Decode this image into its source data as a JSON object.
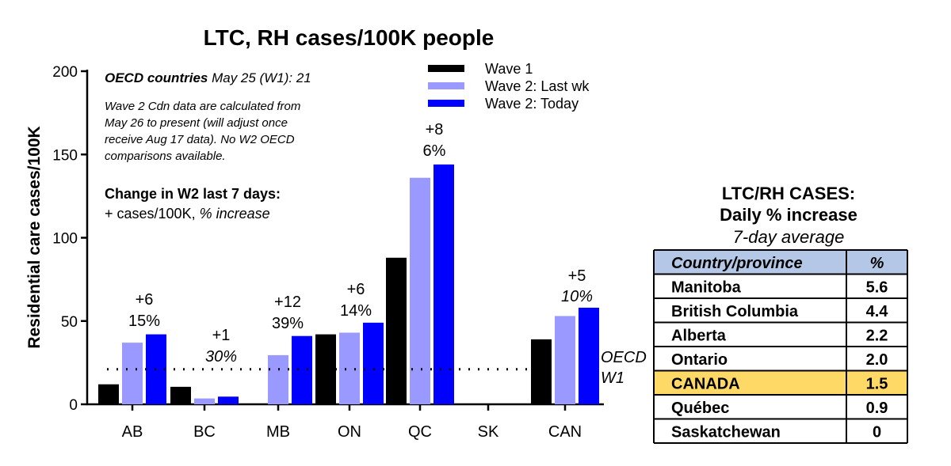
{
  "chart_data": {
    "type": "bar",
    "title": "LTC, RH cases/100K people",
    "ylabel": "Residential care cases/100K",
    "ylim": [
      0,
      200
    ],
    "yticks": [
      0,
      50,
      100,
      150,
      200
    ],
    "categories": [
      "AB",
      "BC",
      "MB",
      "ON",
      "QC",
      "SK",
      "CAN"
    ],
    "series": [
      {
        "name": "Wave 1",
        "color": "#000000",
        "values": [
          12,
          10.5,
          0,
          42,
          88,
          0,
          39
        ]
      },
      {
        "name": "Wave 2: Last wk",
        "color": "#9999ff",
        "values": [
          37,
          3.5,
          29.5,
          43,
          136,
          0,
          53
        ]
      },
      {
        "name": "Wave 2: Today",
        "color": "#0000ff",
        "values": [
          42,
          4.6,
          41,
          49,
          144,
          0,
          58
        ]
      }
    ],
    "bar_annotations": [
      {
        "category": "AB",
        "top": "+6",
        "bottom": "15%",
        "bottom_italic": false
      },
      {
        "category": "BC",
        "top": "+1",
        "bottom": "30%",
        "bottom_italic": true
      },
      {
        "category": "MB",
        "top": "+12",
        "bottom": "39%",
        "bottom_italic": false
      },
      {
        "category": "ON",
        "top": "+6",
        "bottom": "14%",
        "bottom_italic": false
      },
      {
        "category": "QC",
        "top": "+8",
        "bottom": "6%",
        "bottom_italic": false
      },
      {
        "category": "CAN",
        "top": "+5",
        "bottom": "10%",
        "bottom_italic": true
      }
    ],
    "reference_line": {
      "value": 21,
      "label_line1": "OECD",
      "label_line2": "W1",
      "style": "dotted"
    },
    "legend_placement": "top-center"
  },
  "annotations": {
    "oecd_bold": "OECD countries",
    "oecd_rest": " May 25 (W1): 21",
    "note_lines": [
      "Wave 2 Cdn data are calculated from",
      "May 26 to present (will adjust once",
      "receive Aug 17 data). No W2 OECD",
      "comparisons available."
    ],
    "change_heading": "Change in W2 last 7 days:",
    "change_sub_plain": "+ cases/100K, ",
    "change_sub_italic": "% increase"
  },
  "table": {
    "title_line1": "LTC/RH CASES:",
    "title_line2": "Daily % increase",
    "subtitle": "7-day average",
    "header": [
      "Country/province",
      "%"
    ],
    "header_color": "#b4c7e7",
    "highlight_color": "#ffd966",
    "rows": [
      {
        "name": "Manitoba",
        "value": "5.6",
        "highlight": false
      },
      {
        "name": "British Columbia",
        "value": "4.4",
        "highlight": false
      },
      {
        "name": "Alberta",
        "value": "2.2",
        "highlight": false
      },
      {
        "name": "Ontario",
        "value": "2.0",
        "highlight": false
      },
      {
        "name": "CANADA",
        "value": "1.5",
        "highlight": true
      },
      {
        "name": "Québec",
        "value": "0.9",
        "highlight": false
      },
      {
        "name": "Saskatchewan",
        "value": "0",
        "highlight": false
      }
    ]
  }
}
